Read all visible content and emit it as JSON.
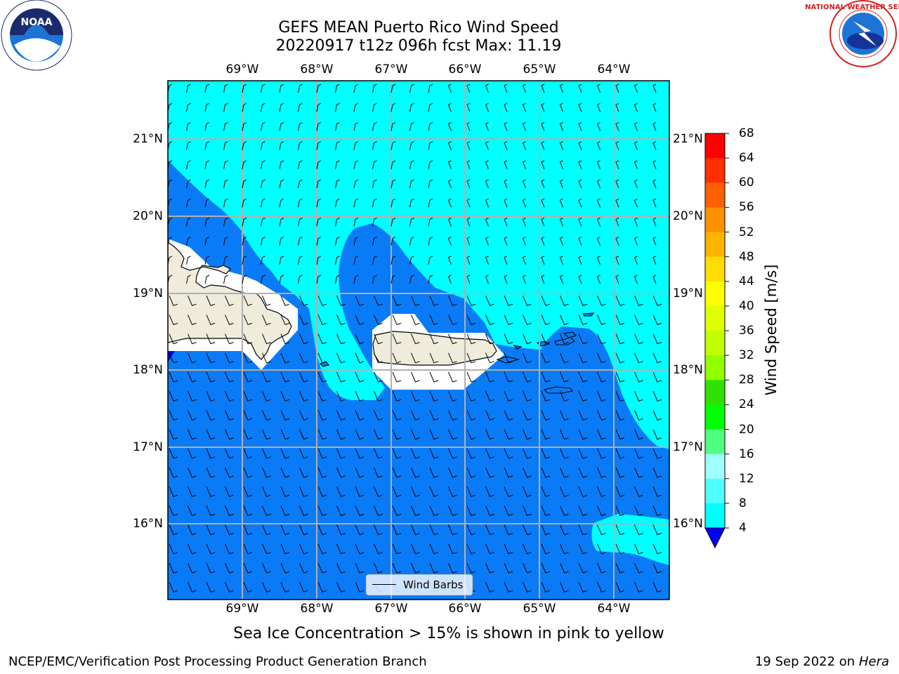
{
  "header": {
    "title_line1": "GEFS MEAN Puerto Rico Wind Speed",
    "title_line2": "20220917 t12z 096h fcst   Max: 11.19"
  },
  "logos": {
    "left": "NOAA",
    "left_ring_text": "NATIONAL OCEANIC AND ATMOSPHERIC ADMINISTRATION · U.S. DEPARTMENT OF COMMERCE",
    "right_ring_text": "NATIONAL WEATHER SERVICE"
  },
  "map": {
    "lon_labels": [
      "69°W",
      "68°W",
      "67°W",
      "66°W",
      "65°W",
      "64°W"
    ],
    "lat_labels": [
      "21°N",
      "20°N",
      "19°N",
      "18°N",
      "17°N",
      "16°N"
    ],
    "legend_label": "Wind Barbs",
    "colors": {
      "ocean_low": "#0a7bf7",
      "ocean_mid": "#00ffff",
      "land": "#efecdc",
      "grid": "#b0b0b0",
      "below_range": "#0000ff"
    }
  },
  "colorbar": {
    "title": "Wind Speed [m/s]",
    "ticks": [
      "68",
      "64",
      "60",
      "56",
      "52",
      "48",
      "44",
      "40",
      "36",
      "32",
      "28",
      "24",
      "20",
      "16",
      "12",
      "8",
      "4"
    ],
    "colors": [
      "#ff0000",
      "#ff3000",
      "#ff6000",
      "#ff9000",
      "#ffb400",
      "#ffdd00",
      "#ffff00",
      "#e0ff00",
      "#c0ff00",
      "#90ff00",
      "#30e000",
      "#00ff00",
      "#50ff80",
      "#a0ffff",
      "#50ffff",
      "#00ffff",
      "#0a7bf7"
    ]
  },
  "footer": {
    "note": "Sea Ice Concentration > 15% is shown in pink to yellow",
    "left": "NCEP/EMC/Verification Post Processing Product Generation Branch",
    "right_date": "19 Sep 2022 on",
    "right_host": "Hera"
  }
}
